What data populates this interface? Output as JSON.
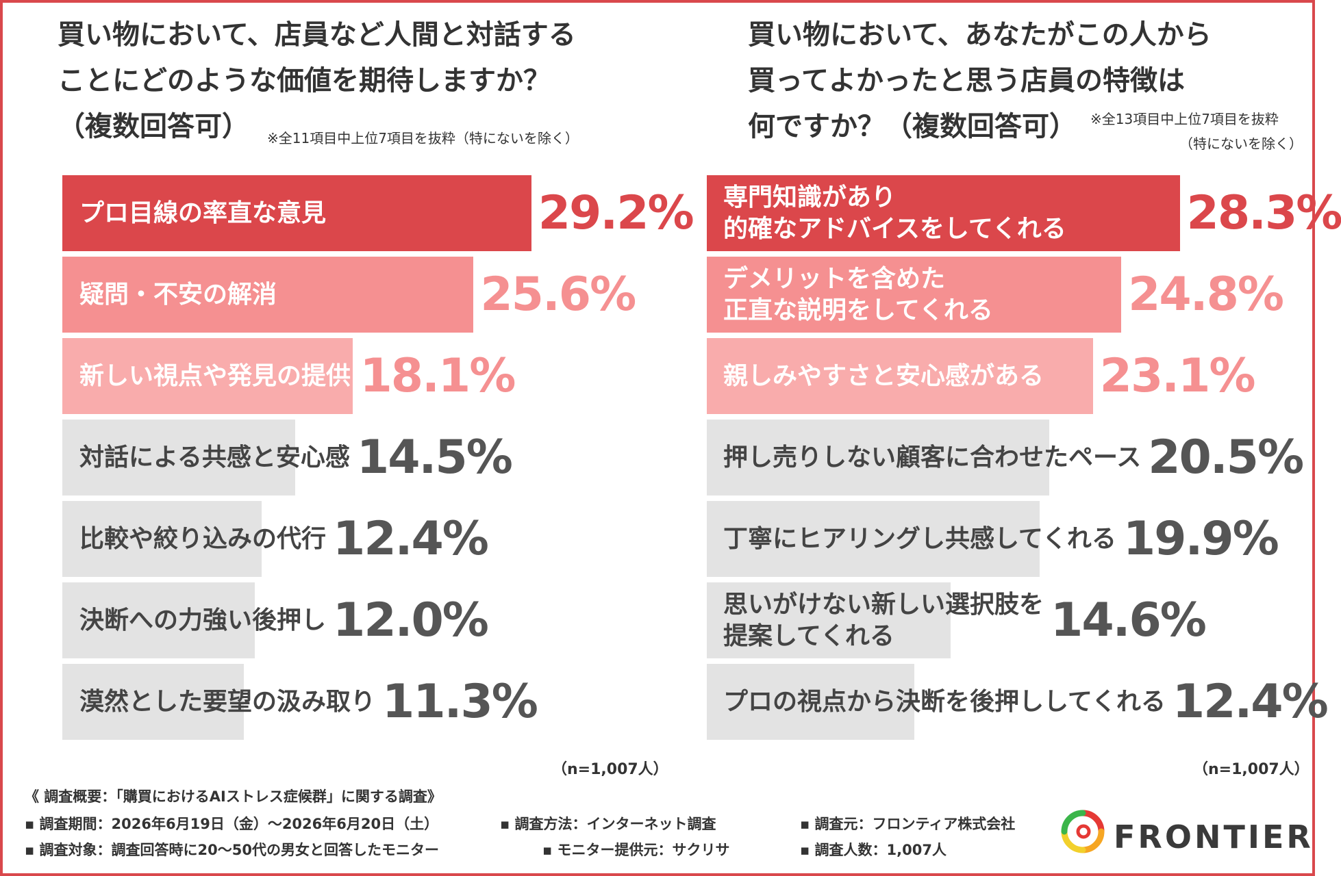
{
  "colors": {
    "primary": "#db474b",
    "mid": "#f59091",
    "light": "#f9acac",
    "gray": "#e3e3e3",
    "gray_text": "#555555",
    "frame": "#d9484c"
  },
  "left": {
    "title_lines": [
      "買い物において、店員など人間と対話する",
      "ことにどのような価値を期待しますか？",
      "（複数回答可）"
    ],
    "note": "※全11項目中上位7項目を抜粋（特にないを除く）",
    "n": "（n=1,007人）"
  },
  "right": {
    "title_lines": [
      "買い物において、あなたがこの人から",
      "買ってよかったと思う店員の特徴は",
      "何ですか？（複数回答可）"
    ],
    "note_lines": [
      "※全13項目中上位7項目を抜粋",
      "（特にないを除く）"
    ],
    "n": "（n=1,007人）"
  },
  "chart_data": [
    {
      "type": "bar",
      "orientation": "horizontal",
      "categories": [
        [
          "プロ目線の率直な意見"
        ],
        [
          "疑問・不安の解消"
        ],
        [
          "新しい視点や発見の提供"
        ],
        [
          "対話による共感と安心感"
        ],
        [
          "比較や絞り込みの代行"
        ],
        [
          "決断への力強い後押し"
        ],
        [
          "漠然とした要望の汲み取り"
        ]
      ],
      "values": [
        29.2,
        25.6,
        18.1,
        14.5,
        12.4,
        12.0,
        11.3
      ],
      "value_labels": [
        "29.2%",
        "25.6%",
        "18.1%",
        "14.5%",
        "12.4%",
        "12.0%",
        "11.3%"
      ],
      "unit": "%"
    },
    {
      "type": "bar",
      "orientation": "horizontal",
      "categories": [
        [
          "専門知識があり",
          "的確なアドバイスをしてくれる"
        ],
        [
          "デメリットを含めた",
          "正直な説明をしてくれる"
        ],
        [
          "親しみやすさと安心感がある"
        ],
        [
          "押し売りしない顧客に合わせたペース"
        ],
        [
          "丁寧にヒアリングし共感してくれる"
        ],
        [
          "思いがけない新しい選択肢を",
          "提案してくれる"
        ],
        [
          "プロの視点から決断を後押ししてくれる"
        ]
      ],
      "values": [
        28.3,
        24.8,
        23.1,
        20.5,
        19.9,
        14.6,
        12.4
      ],
      "value_labels": [
        "28.3%",
        "24.8%",
        "23.1%",
        "20.5%",
        "19.9%",
        "14.6%",
        "12.4%"
      ],
      "unit": "%"
    }
  ],
  "footer": {
    "summary": "《 調査概要：「購買におけるAIストレス症候群」に関する調査》",
    "period": "▪ 調査期間：2026年6月19日（金）〜2026年6月20日（土）",
    "method": "▪ 調査方法：インターネット調査",
    "org": "▪ 調査元：フロンティア株式会社",
    "target": "▪ 調査対象：調査回答時に20〜50代の男女と回答したモニター",
    "provider": "▪ モニター提供元：サクリサ",
    "count": "▪ 調査人数：1,007人"
  },
  "logo": {
    "text": "FRONTIER",
    "icon": "frontier-logo-icon"
  }
}
